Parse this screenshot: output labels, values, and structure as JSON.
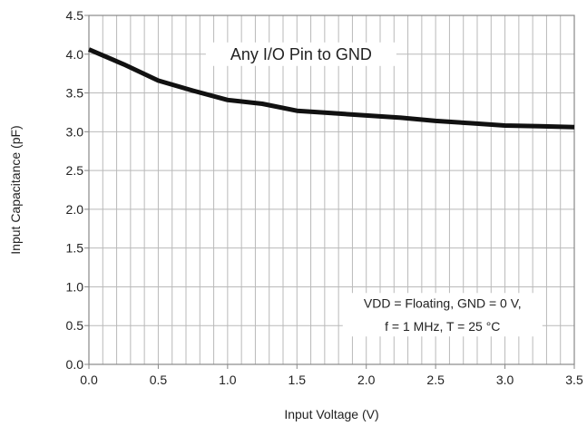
{
  "chart_data": {
    "type": "line",
    "xlabel": "Input Voltage (V)",
    "ylabel": "Input Capacitance  (pF)",
    "xlim": [
      0.0,
      3.5
    ],
    "ylim": [
      0.0,
      4.5
    ],
    "grid": true,
    "x_ticks": [
      "0.0",
      "0.5",
      "1.0",
      "1.5",
      "2.0",
      "2.5",
      "3.0",
      "3.5"
    ],
    "y_ticks": [
      "0.0",
      "0.5",
      "1.0",
      "1.5",
      "2.0",
      "2.5",
      "3.0",
      "3.5",
      "4.0",
      "4.5"
    ],
    "series": [
      {
        "color": "#111111",
        "x": [
          0.0,
          0.25,
          0.5,
          0.75,
          1.0,
          1.25,
          1.5,
          1.75,
          2.0,
          2.25,
          2.5,
          2.75,
          3.0,
          3.25,
          3.5
        ],
        "y": [
          4.06,
          3.87,
          3.66,
          3.53,
          3.41,
          3.36,
          3.27,
          3.24,
          3.21,
          3.18,
          3.14,
          3.11,
          3.08,
          3.07,
          3.06
        ]
      }
    ],
    "annotations": [
      {
        "text": "Any I/O Pin to GND",
        "x": 1.53,
        "y": 4.0
      },
      {
        "text": "VDD = Floating, GND = 0 V,",
        "x": 2.55,
        "y": 0.79
      },
      {
        "text": "f = 1 MHz, T = 25 °C",
        "x": 2.55,
        "y": 0.49
      }
    ]
  },
  "colors": {
    "line": "#111111",
    "grid": "#b9b9b9",
    "frame": "#888888",
    "text": "#222222"
  }
}
